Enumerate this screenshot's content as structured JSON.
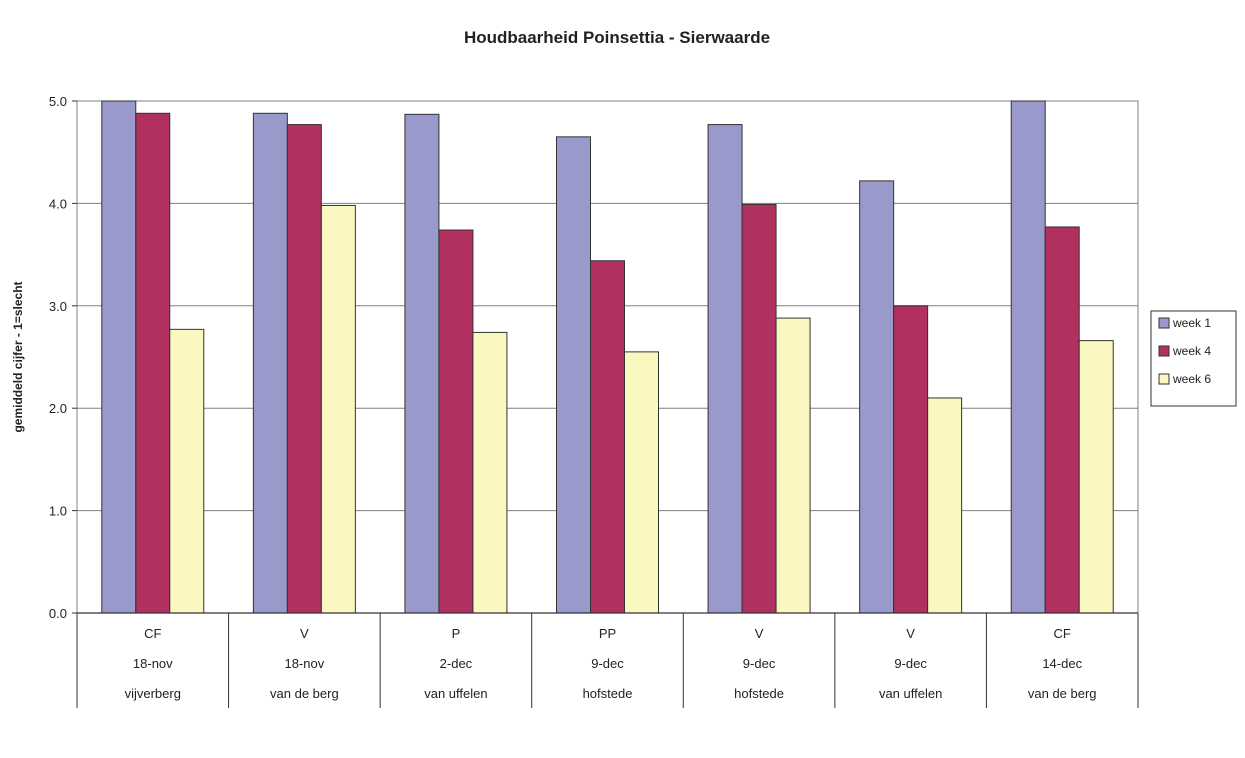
{
  "chart_data": {
    "type": "bar",
    "title": "Houdbaarheid Poinsettia - Sierwaarde",
    "xlabel": "",
    "ylabel": "gemiddeld cijfer - 1=slecht",
    "ylim": [
      0,
      5
    ],
    "yticks": [
      "0.0",
      "1.0",
      "2.0",
      "3.0",
      "4.0",
      "5.0"
    ],
    "ytick_values": [
      0,
      1,
      2,
      3,
      4,
      5
    ],
    "grid": true,
    "legend_position": "right",
    "categories": [
      [
        "CF",
        "18-nov",
        "vijverberg"
      ],
      [
        "V",
        "18-nov",
        "van de berg"
      ],
      [
        "P",
        "2-dec",
        "van uffelen"
      ],
      [
        "PP",
        "9-dec",
        "hofstede"
      ],
      [
        "V",
        "9-dec",
        "hofstede"
      ],
      [
        "V",
        "9-dec",
        "van uffelen"
      ],
      [
        "CF",
        "14-dec",
        "van de berg"
      ]
    ],
    "series": [
      {
        "name": "week 1",
        "color": "#9999cc",
        "values": [
          5.0,
          4.88,
          4.87,
          4.65,
          4.77,
          4.22,
          5.0
        ]
      },
      {
        "name": "week 4",
        "color": "#b03060",
        "values": [
          4.88,
          4.77,
          3.74,
          3.44,
          3.99,
          3.0,
          3.77
        ]
      },
      {
        "name": "week 6",
        "color": "#fbf7c0",
        "values": [
          2.77,
          3.98,
          2.74,
          2.55,
          2.88,
          2.1,
          2.66
        ]
      }
    ]
  }
}
